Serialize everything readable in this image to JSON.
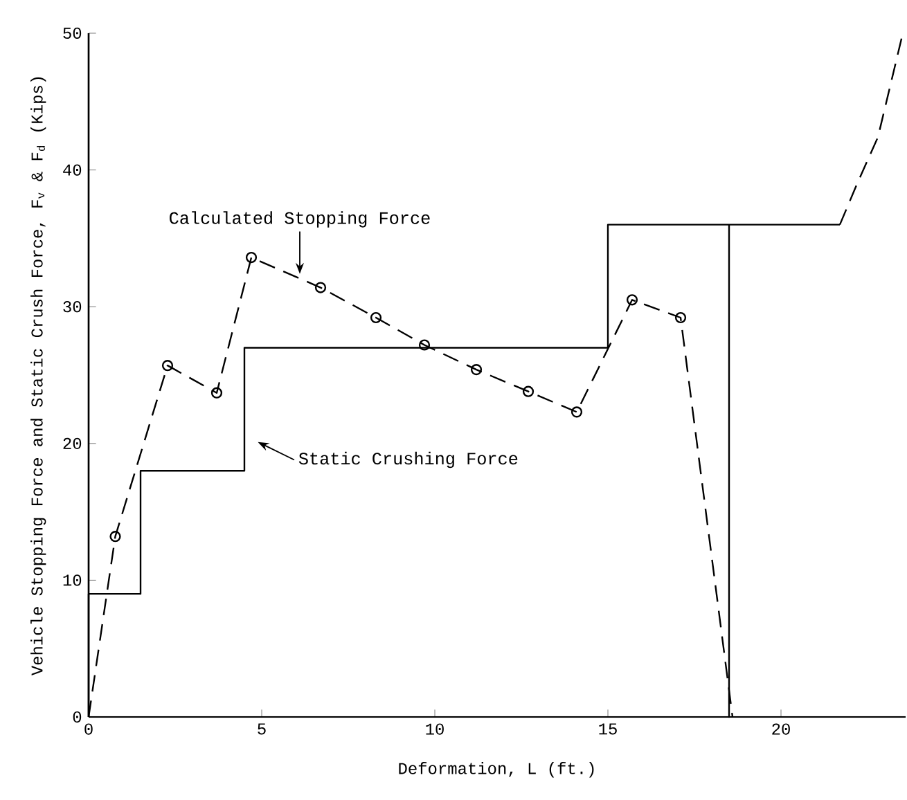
{
  "chart_data": {
    "type": "line",
    "xlabel": "Deformation, L (ft.)",
    "ylabel": "Vehicle Stopping Force and Static Crush Force, F$_{v}$ & F$_{d}$ (Kips)",
    "xlim": [
      0,
      23.6
    ],
    "ylim": [
      0,
      50
    ],
    "xticks": [
      0,
      5,
      10,
      15,
      20
    ],
    "yticks": [
      0,
      10,
      20,
      30,
      40,
      50
    ],
    "grid": false,
    "series": [
      {
        "color": "#000000",
        "line_style": "solid",
        "marker": "none",
        "x": [
          0,
          0,
          1.5,
          1.5,
          4.5,
          4.5,
          15,
          15,
          18.5,
          18.5,
          18.5,
          21.7
        ],
        "values": [
          0,
          9,
          9,
          18,
          18,
          27,
          27,
          36,
          36,
          0,
          36,
          36
        ]
      },
      {
        "color": "#000000",
        "line_style": "dashed",
        "marker": "none",
        "x": [
          21.7,
          22.2,
          22.8,
          23.5
        ],
        "values": [
          36,
          39,
          42.4,
          49.8
        ]
      },
      {
        "color": "#000000",
        "line_style": "dashed",
        "marker": "circle",
        "x": [
          0,
          0.77,
          2.28,
          3.7,
          4.7,
          6.7,
          8.3,
          9.7,
          11.2,
          12.7,
          14.1,
          15.7,
          17.1,
          18.6
        ],
        "values": [
          0,
          13.2,
          25.7,
          23.7,
          33.6,
          31.4,
          29.2,
          27.2,
          25.4,
          23.8,
          22.3,
          30.5,
          29.2,
          0
        ]
      }
    ],
    "annotations": [
      {
        "text": "Calculated Stopping Force",
        "x": 6.1,
        "y": 32.1
      },
      {
        "text": "Static Crushing Force",
        "x": 4.64,
        "y": 20.4
      }
    ]
  }
}
